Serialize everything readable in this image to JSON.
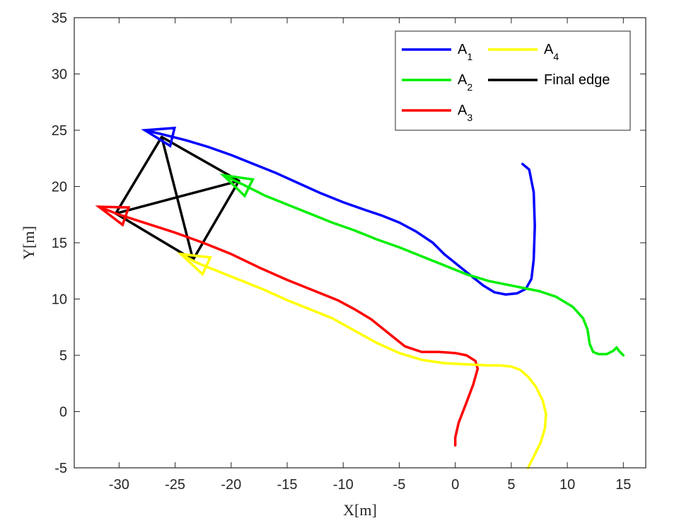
{
  "chart_data": {
    "type": "line",
    "xlabel": "X[m]",
    "ylabel": "Y[m]",
    "xlim": [
      -34,
      17
    ],
    "ylim": [
      -5,
      35
    ],
    "xticks": [
      -30,
      -25,
      -20,
      -15,
      -10,
      -5,
      0,
      5,
      10,
      15
    ],
    "yticks": [
      -5,
      0,
      5,
      10,
      15,
      20,
      25,
      30,
      35
    ],
    "grid": false,
    "legend_position": "top-right",
    "series": [
      {
        "name": "A",
        "subscript": "1",
        "color": "#0000ff",
        "x": [
          6.0,
          6.6,
          7.0,
          7.1,
          7.0,
          6.8,
          6.3,
          5.5,
          4.5,
          3.5,
          2.5,
          1.5,
          0.5,
          -1.0,
          -2.0,
          -3.5,
          -5.0,
          -6.5,
          -8.0,
          -10.0,
          -12.0,
          -14.0,
          -16.0,
          -18.0,
          -20.0,
          -22.0,
          -24.0,
          -26.0,
          -27.7
        ],
        "y": [
          22.0,
          21.5,
          19.5,
          16.5,
          13.5,
          11.8,
          10.9,
          10.5,
          10.4,
          10.6,
          11.2,
          12.0,
          12.8,
          14.0,
          15.0,
          16.0,
          16.8,
          17.4,
          17.9,
          18.6,
          19.4,
          20.3,
          21.2,
          22.0,
          22.8,
          23.5,
          24.1,
          24.6,
          25.0
        ]
      },
      {
        "name": "A",
        "subscript": "2",
        "color": "#00ee00",
        "x": [
          15.0,
          14.6,
          14.4,
          14.1,
          13.5,
          12.8,
          12.3,
          12.0,
          11.8,
          11.4,
          10.5,
          9.0,
          7.5,
          6.0,
          4.5,
          3.0,
          1.0,
          -1.0,
          -3.0,
          -5.0,
          -7.0,
          -9.0,
          -11.0,
          -13.0,
          -15.0,
          -17.0,
          -19.0,
          -20.7
        ],
        "y": [
          5.0,
          5.4,
          5.7,
          5.4,
          5.1,
          5.1,
          5.3,
          6.0,
          7.3,
          8.3,
          9.3,
          10.2,
          10.7,
          11.0,
          11.3,
          11.6,
          12.2,
          13.0,
          13.8,
          14.6,
          15.3,
          16.1,
          16.8,
          17.6,
          18.4,
          19.2,
          20.2,
          21.0
        ]
      },
      {
        "name": "A",
        "subscript": "3",
        "color": "#ff0000",
        "x": [
          0.0,
          0.0,
          0.3,
          1.0,
          1.6,
          2.0,
          1.8,
          1.0,
          0.0,
          -1.5,
          -3.0,
          -4.5,
          -6.0,
          -7.5,
          -9.0,
          -10.5,
          -12.5,
          -15.0,
          -17.5,
          -20.0,
          -22.5,
          -25.0,
          -27.5,
          -30.0,
          -31.8
        ],
        "y": [
          -3.0,
          -2.3,
          -1.0,
          0.8,
          2.4,
          3.8,
          4.5,
          5.0,
          5.2,
          5.3,
          5.3,
          5.8,
          7.0,
          8.2,
          9.1,
          9.9,
          10.7,
          11.7,
          12.8,
          14.0,
          15.0,
          15.9,
          16.7,
          17.5,
          18.2
        ]
      },
      {
        "name": "A",
        "subscript": "4",
        "color": "#ffff00",
        "x": [
          6.5,
          7.0,
          7.6,
          8.0,
          8.1,
          7.8,
          7.2,
          6.5,
          5.8,
          5.0,
          4.0,
          3.0,
          1.0,
          -1.0,
          -3.0,
          -5.0,
          -7.0,
          -9.0,
          -11.0,
          -13.0,
          -15.0,
          -17.0,
          -19.0,
          -21.0,
          -23.0,
          -24.5
        ],
        "y": [
          -5.0,
          -4.0,
          -2.8,
          -1.5,
          -0.2,
          1.0,
          2.2,
          3.1,
          3.7,
          4.0,
          4.1,
          4.1,
          4.2,
          4.3,
          4.6,
          5.2,
          6.1,
          7.2,
          8.3,
          9.1,
          9.9,
          10.8,
          11.6,
          12.4,
          13.2,
          14.0
        ]
      },
      {
        "name": "Final edge",
        "color": "#000000",
        "x": [
          -26.2,
          -19.3,
          -30.3,
          -23.4,
          -26.2
        ],
        "y": [
          24.4,
          20.5,
          17.6,
          13.5,
          24.4
        ],
        "extra_segments": [
          {
            "x": [
              -30.3,
              -26.2
            ],
            "y": [
              17.6,
              24.4
            ]
          },
          {
            "x": [
              -19.3,
              -23.4
            ],
            "y": [
              20.5,
              13.5
            ]
          }
        ]
      }
    ]
  }
}
